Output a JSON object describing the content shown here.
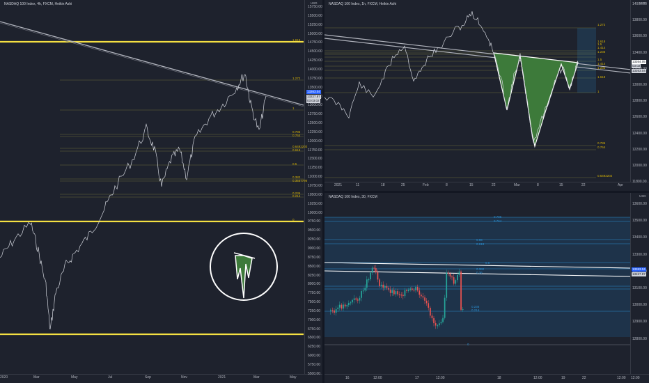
{
  "colors": {
    "bg": "#1e222d",
    "candles": "#d1d4dc",
    "trendline": "#b2b5be",
    "yellow_line": "#f5e042",
    "fib_line": "#6b6a3a",
    "fib_text": "#d4b106",
    "pattern_fill": "#3d7a3a",
    "blue_fib": "#2a8fd1",
    "up_candle": "#26a69a",
    "down_candle": "#ef5350"
  },
  "left": {
    "title": "NASDAQ 100 Index, 4h, FXCM, Heikin Ashi",
    "currency": "USD",
    "price_ticks": [
      "15750.00",
      "15500.00",
      "15250.00",
      "15000.00",
      "14750.00",
      "14500.00",
      "14250.00",
      "14000.00",
      "13750.00",
      "13500.00",
      "13250.00",
      "13000.00",
      "12750.00",
      "12500.00",
      "12250.00",
      "12000.00",
      "11750.00",
      "11500.00",
      "11250.00",
      "11000.00",
      "10750.00",
      "10500.00",
      "10250.00",
      "10000.00",
      "9750.00",
      "9500.00",
      "9250.00",
      "9000.00",
      "8750.00",
      "8500.00",
      "8250.00",
      "8000.00",
      "7750.00",
      "7500.00",
      "7250.00",
      "7000.00",
      "6750.00",
      "6500.00",
      "6250.00",
      "6000.00",
      "5750.00",
      "5500.00"
    ],
    "date_ticks": [
      "2020",
      "Mar",
      "May",
      "Jul",
      "Sep",
      "Nov",
      "2021",
      "Mar",
      "May"
    ],
    "fib_labels": [
      "1.618",
      "1.272",
      "1",
      "0.786",
      "0.764",
      "0.6492202",
      "0.618",
      "0.5",
      "0.382",
      "0.3557796",
      "0.236",
      "0.214",
      "0"
    ],
    "price_tag_main": "13263.04",
    "price_tag_prev": "13227.87",
    "price_tag_time": "03:03:02",
    "logo_icon": "inverse-head-shoulders-logo"
  },
  "top_right": {
    "title": "NASDAQ 100 Index, 1h, FXCM, Heikin Ashi",
    "currency": "USD",
    "price_ticks": [
      "14000.00",
      "13800.00",
      "13600.00",
      "13400.00",
      "13200.00",
      "13000.00",
      "12800.00",
      "12600.00",
      "12400.00",
      "12200.00",
      "12000.00",
      "11800.00"
    ],
    "date_ticks": [
      "2021",
      "11",
      "18",
      "25",
      "Feb",
      "8",
      "15",
      "22",
      "Mar",
      "8",
      "15",
      "22",
      "Apr"
    ],
    "fib_labels": [
      "1.272",
      "1.618",
      "1.5",
      "1.414",
      "1.236",
      "1.5",
      "1.414",
      "1.236",
      "1.618",
      "1",
      "0.786",
      "0.764",
      "0.6492202"
    ],
    "price_tag_main": "13264.05",
    "price_tag_time": "03:02",
    "price_tag_prev": "13263.04"
  },
  "bottom_right": {
    "title": "NASDAQ 100 Index, 30, FXCM",
    "currency": "USD",
    "price_ticks": [
      "13600.00",
      "13500.00",
      "13400.00",
      "13300.00",
      "13200.00",
      "13100.00",
      "13000.00",
      "12900.00",
      "12800.00"
    ],
    "date_ticks": [
      "16",
      "12:00",
      "17",
      "12:00",
      "18",
      "12:00",
      "19",
      "12:00",
      "22",
      "12:00"
    ],
    "fib_labels": [
      "0.786",
      "0.764",
      "0.65",
      "0.618",
      "0.5",
      "0.382",
      "0.36",
      "0.236",
      "0.214",
      "0"
    ],
    "price_tag_main": "13263.04",
    "price_tag_prev": "13227.87"
  }
}
